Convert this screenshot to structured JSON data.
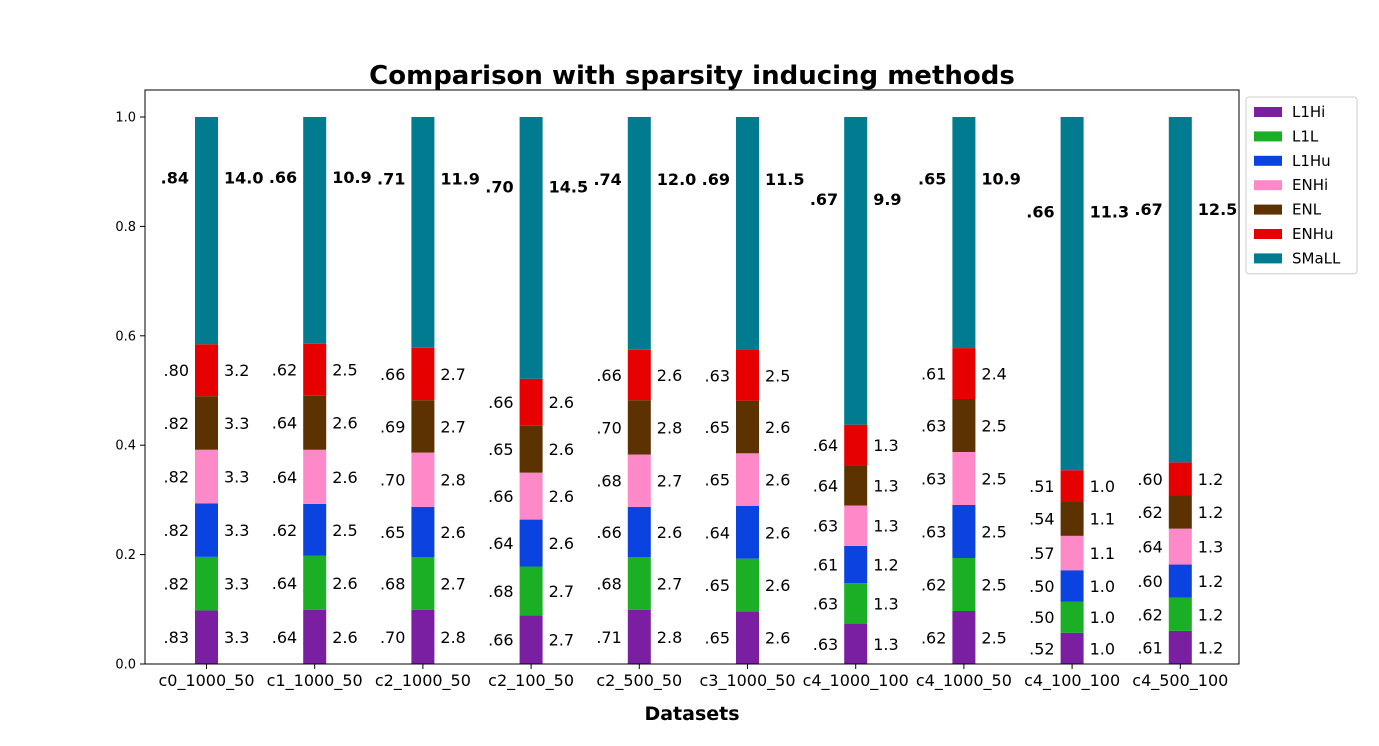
{
  "chart_data": {
    "type": "bar",
    "stacked": true,
    "normalized": true,
    "title": "Comparison with sparsity inducing methods",
    "xlabel": "Datasets",
    "ylabel": "",
    "ylim": [
      0,
      1.0
    ],
    "yticks": [
      "0.0",
      "0.2",
      "0.4",
      "0.6",
      "0.8",
      "1.0"
    ],
    "legend_position": "right, outside, top",
    "categories": [
      "c0_1000_50",
      "c1_1000_50",
      "c2_1000_50",
      "c2_100_50",
      "c2_500_50",
      "c3_1000_50",
      "c4_1000_100",
      "c4_1000_50",
      "c4_100_100",
      "c4_500_100"
    ],
    "series": [
      {
        "name": "L1Hi",
        "color": "#7b1fa2",
        "values": [
          3.3,
          2.6,
          2.8,
          2.7,
          2.8,
          2.6,
          1.3,
          2.5,
          1.0,
          1.2
        ],
        "scores": [
          ".83",
          ".64",
          ".70",
          ".66",
          ".71",
          ".65",
          ".63",
          ".62",
          ".52",
          ".61"
        ]
      },
      {
        "name": "L1L",
        "color": "#1aaf24",
        "values": [
          3.3,
          2.6,
          2.7,
          2.7,
          2.7,
          2.6,
          1.3,
          2.5,
          1.0,
          1.2
        ],
        "scores": [
          ".82",
          ".64",
          ".68",
          ".68",
          ".68",
          ".65",
          ".63",
          ".62",
          ".50",
          ".62"
        ]
      },
      {
        "name": "L1Hu",
        "color": "#0a43e0",
        "values": [
          3.3,
          2.5,
          2.6,
          2.6,
          2.6,
          2.6,
          1.2,
          2.5,
          1.0,
          1.2
        ],
        "scores": [
          ".82",
          ".62",
          ".65",
          ".64",
          ".66",
          ".64",
          ".61",
          ".63",
          ".50",
          ".60"
        ]
      },
      {
        "name": "ENHi",
        "color": "#ff88c8",
        "values": [
          3.3,
          2.6,
          2.8,
          2.6,
          2.7,
          2.6,
          1.3,
          2.5,
          1.1,
          1.3
        ],
        "scores": [
          ".82",
          ".64",
          ".70",
          ".66",
          ".68",
          ".65",
          ".63",
          ".63",
          ".57",
          ".64"
        ]
      },
      {
        "name": "ENL",
        "color": "#5c3200",
        "values": [
          3.3,
          2.6,
          2.7,
          2.6,
          2.8,
          2.6,
          1.3,
          2.5,
          1.1,
          1.2
        ],
        "scores": [
          ".82",
          ".64",
          ".69",
          ".65",
          ".70",
          ".65",
          ".64",
          ".63",
          ".54",
          ".62"
        ]
      },
      {
        "name": "ENHu",
        "color": "#e60000",
        "values": [
          3.2,
          2.5,
          2.7,
          2.6,
          2.6,
          2.5,
          1.3,
          2.4,
          1.0,
          1.2
        ],
        "scores": [
          ".80",
          ".62",
          ".66",
          ".66",
          ".66",
          ".63",
          ".64",
          ".61",
          ".51",
          ".60"
        ]
      },
      {
        "name": "SMaLL",
        "color": "#007b8f",
        "values": [
          14.0,
          10.9,
          11.9,
          14.5,
          12.0,
          11.5,
          9.9,
          10.9,
          11.3,
          12.5
        ],
        "scores": [
          ".84",
          ".66",
          ".71",
          ".70",
          ".74",
          ".69",
          ".67",
          ".65",
          ".66",
          ".67"
        ]
      }
    ]
  }
}
